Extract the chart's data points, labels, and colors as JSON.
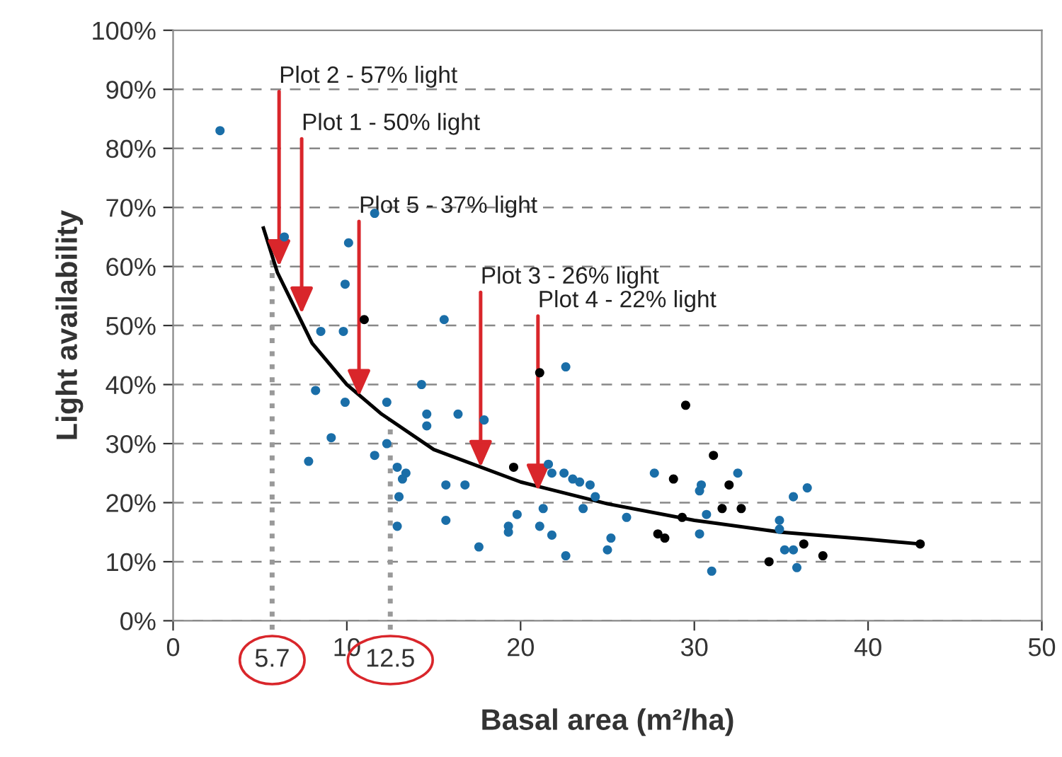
{
  "chart_data": {
    "type": "scatter",
    "xlabel": "Basal area (m²/ha)",
    "ylabel": "Light availability",
    "xlim": [
      0,
      50
    ],
    "xticks": [
      0,
      10,
      20,
      30,
      40,
      50
    ],
    "ylim": [
      0,
      1
    ],
    "yticks": [
      {
        "value": 0,
        "label": "0%"
      },
      {
        "value": 0.1,
        "label": "10%"
      },
      {
        "value": 0.2,
        "label": "20%"
      },
      {
        "value": 0.3,
        "label": "30%"
      },
      {
        "value": 0.4,
        "label": "40%"
      },
      {
        "value": 0.5,
        "label": "50%"
      },
      {
        "value": 0.6,
        "label": "60%"
      },
      {
        "value": 0.7,
        "label": "70%"
      },
      {
        "value": 0.8,
        "label": "80%"
      },
      {
        "value": 0.9,
        "label": "90%"
      },
      {
        "value": 1,
        "label": "100%"
      }
    ],
    "grid": "y",
    "marker": "circle",
    "series": [
      {
        "color": "#1a6ea8",
        "x": [
          2.7,
          6.4,
          10.1,
          9.9,
          8.5,
          9.8,
          11.6,
          8.2,
          9.9,
          12.3,
          14.3,
          14.6,
          14.6,
          16.4,
          9.1,
          12.3,
          7.8,
          11.6,
          12.9,
          13.2,
          13.4,
          13.0,
          15.7,
          16.8,
          12.9,
          15.7,
          17.6,
          15.6,
          17.9,
          22.6,
          21.6,
          21.8,
          22.5,
          23.0,
          23.4,
          24.0,
          24.3,
          19.8,
          19.3,
          19.3,
          21.3,
          21.1,
          21.8,
          22.6,
          23.6,
          25.2,
          25.0,
          26.1,
          27.7,
          30.4,
          30.3,
          30.7,
          30.3,
          31.0,
          32.5,
          34.9,
          34.9,
          35.7,
          36.5,
          35.2,
          35.7,
          35.9
        ],
        "values": [
          0.83,
          0.65,
          0.64,
          0.57,
          0.49,
          0.49,
          0.69,
          0.39,
          0.37,
          0.37,
          0.4,
          0.35,
          0.33,
          0.35,
          0.31,
          0.3,
          0.27,
          0.28,
          0.26,
          0.24,
          0.25,
          0.21,
          0.23,
          0.23,
          0.16,
          0.17,
          0.125,
          0.51,
          0.34,
          0.43,
          0.265,
          0.25,
          0.25,
          0.24,
          0.235,
          0.23,
          0.21,
          0.18,
          0.16,
          0.15,
          0.19,
          0.16,
          0.145,
          0.11,
          0.19,
          0.14,
          0.12,
          0.175,
          0.25,
          0.23,
          0.22,
          0.18,
          0.147,
          0.084,
          0.25,
          0.17,
          0.155,
          0.21,
          0.225,
          0.12,
          0.12,
          0.09
        ]
      },
      {
        "color": "#000000",
        "x": [
          11.0,
          19.6,
          21.1,
          28.8,
          29.5,
          27.9,
          28.3,
          29.3,
          31.1,
          32.0,
          31.6,
          32.7,
          34.3,
          36.3,
          37.4,
          43.0
        ],
        "values": [
          0.51,
          0.26,
          0.42,
          0.24,
          0.365,
          0.147,
          0.14,
          0.175,
          0.28,
          0.23,
          0.19,
          0.19,
          0.1,
          0.13,
          0.11,
          0.13
        ]
      },
      {
        "type": "line",
        "color": "#000000",
        "marker": "none",
        "line_style": "solid",
        "x": [
          5.2,
          6,
          7,
          8,
          10,
          12,
          15,
          20,
          25,
          30,
          35,
          40,
          43
        ],
        "values": [
          0.665,
          0.59,
          0.53,
          0.47,
          0.4,
          0.35,
          0.29,
          0.235,
          0.198,
          0.17,
          0.15,
          0.138,
          0.13
        ]
      }
    ],
    "ref_lines": [
      {
        "axis": "x",
        "value": 5.7,
        "label": "5.7",
        "color": "#999999",
        "line_style": "dotted"
      },
      {
        "axis": "x",
        "value": 12.5,
        "label": "12.5",
        "color": "#999999",
        "line_style": "dotted"
      }
    ],
    "annotations": [
      {
        "text": "Plot 2 - 57% light",
        "x": 6.1,
        "y": 0.6
      },
      {
        "text": "Plot 1 - 50% light",
        "x": 7.4,
        "y": 0.52
      },
      {
        "text": "Plot 5 - 37% light",
        "x": 10.7,
        "y": 0.38
      },
      {
        "text": "Plot 3 - 26% light",
        "x": 17.7,
        "y": 0.26
      },
      {
        "text": "Plot 4 - 22% light",
        "x": 21.0,
        "y": 0.22
      }
    ]
  }
}
